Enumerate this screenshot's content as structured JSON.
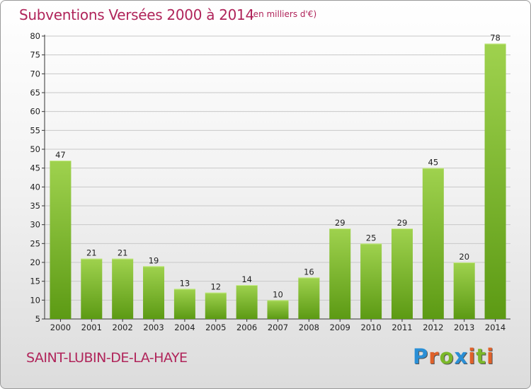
{
  "title": "Subventions Versées 2000 à 2014",
  "subtitle": "(en milliers d'€)",
  "town": "SAINT-LUBIN-DE-LA-HAYE",
  "logo": {
    "letters": [
      "P",
      "r",
      "o",
      "x",
      "i",
      "t",
      "i"
    ],
    "colors": [
      "#2a8fd6",
      "#e0612a",
      "#7bb82a",
      "#2a8fd6",
      "#e0612a",
      "#7bb82a",
      "#e0612a"
    ]
  },
  "colors": {
    "title": "#b0245a",
    "bar_top": "#9fd24e",
    "bar_bottom": "#5c9a14",
    "grid": "#c8c8c8"
  },
  "chart_data": {
    "type": "bar",
    "categories": [
      "2000",
      "2001",
      "2002",
      "2003",
      "2004",
      "2005",
      "2006",
      "2007",
      "2008",
      "2009",
      "2010",
      "2011",
      "2012",
      "2013",
      "2014"
    ],
    "values": [
      47,
      21,
      21,
      19,
      13,
      12,
      14,
      10,
      16,
      29,
      25,
      29,
      45,
      20,
      78
    ],
    "title": "Subventions Versées 2000 à 2014",
    "xlabel": "",
    "ylabel": "",
    "ylim": [
      5,
      80
    ],
    "yticks": [
      5,
      10,
      15,
      20,
      25,
      30,
      35,
      40,
      45,
      50,
      55,
      60,
      65,
      70,
      75,
      80
    ],
    "grid": true,
    "data_labels": true
  }
}
